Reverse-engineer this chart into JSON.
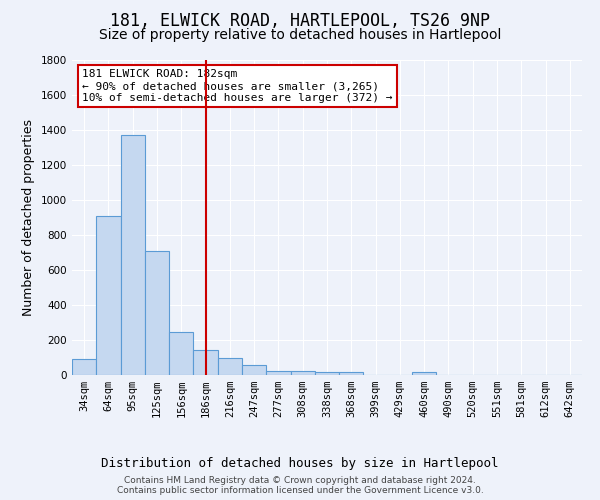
{
  "title": "181, ELWICK ROAD, HARTLEPOOL, TS26 9NP",
  "subtitle": "Size of property relative to detached houses in Hartlepool",
  "xlabel": "Distribution of detached houses by size in Hartlepool",
  "ylabel": "Number of detached properties",
  "categories": [
    "34sqm",
    "64sqm",
    "95sqm",
    "125sqm",
    "156sqm",
    "186sqm",
    "216sqm",
    "247sqm",
    "277sqm",
    "308sqm",
    "338sqm",
    "368sqm",
    "399sqm",
    "429sqm",
    "460sqm",
    "490sqm",
    "520sqm",
    "551sqm",
    "581sqm",
    "612sqm",
    "642sqm"
  ],
  "values": [
    90,
    910,
    1370,
    710,
    245,
    145,
    95,
    55,
    25,
    25,
    15,
    15,
    0,
    0,
    15,
    0,
    0,
    0,
    0,
    0,
    0
  ],
  "bar_color": "#c5d8f0",
  "bar_edge_color": "#5b9bd5",
  "background_color": "#eef2fa",
  "grid_color": "#ffffff",
  "vline_x_idx": 5,
  "vline_color": "#cc0000",
  "annotation_text": "181 ELWICK ROAD: 182sqm\n← 90% of detached houses are smaller (3,265)\n10% of semi-detached houses are larger (372) →",
  "annotation_box_color": "#ffffff",
  "annotation_box_edge": "#cc0000",
  "ylim": [
    0,
    1800
  ],
  "yticks": [
    0,
    200,
    400,
    600,
    800,
    1000,
    1200,
    1400,
    1600,
    1800
  ],
  "footer_line1": "Contains HM Land Registry data © Crown copyright and database right 2024.",
  "footer_line2": "Contains public sector information licensed under the Government Licence v3.0.",
  "title_fontsize": 12,
  "subtitle_fontsize": 10,
  "xlabel_fontsize": 9,
  "ylabel_fontsize": 9,
  "tick_fontsize": 7.5,
  "annot_fontsize": 8
}
